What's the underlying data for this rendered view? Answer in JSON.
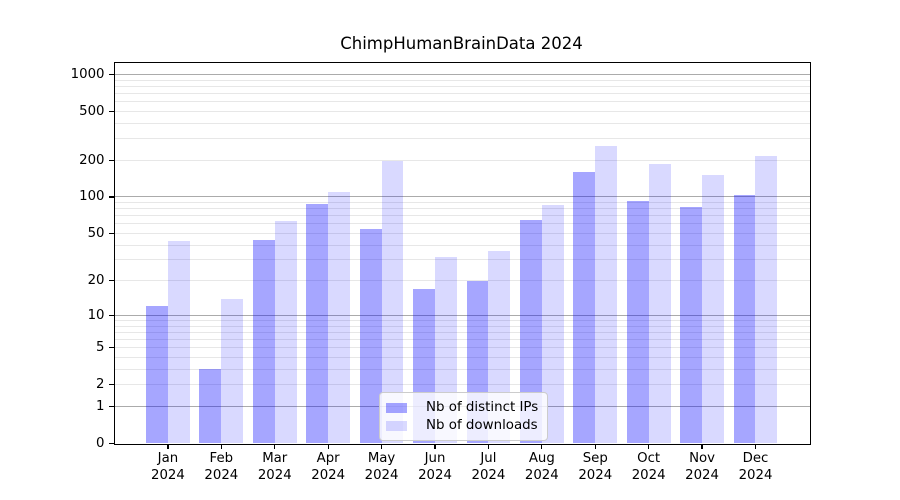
{
  "chart_data": {
    "type": "bar",
    "title": "ChimpHumanBrainData 2024",
    "x": {
      "months": [
        "Jan",
        "Feb",
        "Mar",
        "Apr",
        "May",
        "Jun",
        "Jul",
        "Aug",
        "Sep",
        "Oct",
        "Nov",
        "Dec"
      ],
      "year": "2024"
    },
    "series": [
      {
        "name": "Nb of distinct IPs",
        "color": "rgba(0,0,255,0.35)",
        "values": [
          12,
          3,
          44,
          88,
          54,
          17,
          20,
          65,
          160,
          92,
          82,
          104
        ]
      },
      {
        "name": "Nb of downloads",
        "color": "rgba(0,0,255,0.15)",
        "values": [
          43,
          14,
          63,
          110,
          195,
          32,
          36,
          85,
          260,
          185,
          150,
          215
        ]
      }
    ],
    "yscale": "log1p",
    "ylim": [
      0,
      1250
    ],
    "yticks": [
      0,
      1,
      2,
      5,
      10,
      20,
      50,
      100,
      200,
      500,
      1000
    ],
    "grid": {
      "major": [
        1,
        10,
        100,
        1000
      ],
      "minor": [
        2,
        3,
        4,
        5,
        6,
        7,
        8,
        9,
        20,
        30,
        40,
        50,
        60,
        70,
        80,
        90,
        200,
        300,
        400,
        500,
        600,
        700,
        800,
        900
      ],
      "major_color": "#ababab",
      "minor_color": "#e7e7e7"
    },
    "legend": {
      "position": "lower center"
    },
    "axis_color": "#000000"
  }
}
